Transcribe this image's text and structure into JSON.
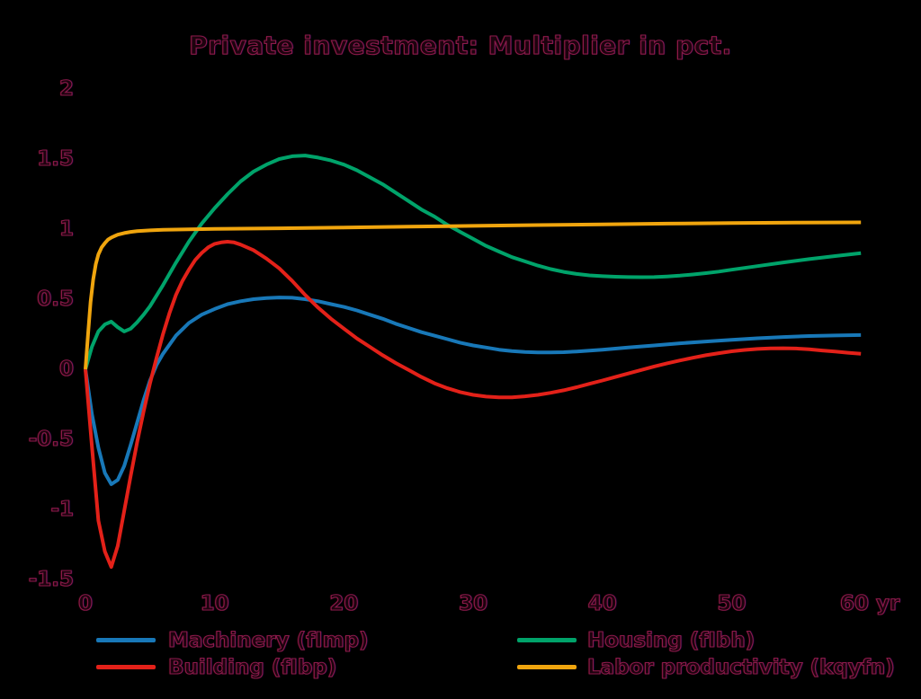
{
  "title": "Private investment: Multiplier in pct.",
  "style": {
    "background": "#000000",
    "text_color": "#8c1a4a"
  },
  "chart_data": {
    "type": "line",
    "title": "Private investment: Multiplier in pct.",
    "xlabel": "yr",
    "ylabel": "",
    "xlim": [
      0,
      60
    ],
    "ylim": [
      -1.5,
      2
    ],
    "grid": false,
    "legend_position": "bottom",
    "x_ticks": [
      {
        "value": 0,
        "label": "0"
      },
      {
        "value": 10,
        "label": "10"
      },
      {
        "value": 20,
        "label": "20"
      },
      {
        "value": 30,
        "label": "30"
      },
      {
        "value": 40,
        "label": "40"
      },
      {
        "value": 50,
        "label": "50"
      },
      {
        "value": 60,
        "label": "60 yr"
      }
    ],
    "y_ticks": [
      {
        "value": 2,
        "label": "2"
      },
      {
        "value": 1.5,
        "label": "1.5"
      },
      {
        "value": 1,
        "label": "1"
      },
      {
        "value": 0.5,
        "label": "0.5"
      },
      {
        "value": 0,
        "label": "0"
      },
      {
        "value": -0.5,
        "label": "-0.5"
      },
      {
        "value": -1,
        "label": "-1"
      },
      {
        "value": -1.5,
        "label": "-1.5"
      }
    ],
    "series": [
      {
        "key": "machinery",
        "name": "Machinery (fImp)",
        "color": "#1878b8",
        "points": [
          [
            0,
            0
          ],
          [
            0.5,
            -0.32
          ],
          [
            1,
            -0.56
          ],
          [
            1.5,
            -0.74
          ],
          [
            2,
            -0.82
          ],
          [
            2.5,
            -0.79
          ],
          [
            3,
            -0.69
          ],
          [
            3.5,
            -0.54
          ],
          [
            4,
            -0.38
          ],
          [
            4.5,
            -0.22
          ],
          [
            5,
            -0.08
          ],
          [
            5.5,
            0.03
          ],
          [
            6,
            0.11
          ],
          [
            7,
            0.24
          ],
          [
            8,
            0.33
          ],
          [
            9,
            0.39
          ],
          [
            10,
            0.43
          ],
          [
            11,
            0.465
          ],
          [
            12,
            0.485
          ],
          [
            13,
            0.5
          ],
          [
            14,
            0.508
          ],
          [
            15,
            0.512
          ],
          [
            16,
            0.51
          ],
          [
            17,
            0.5
          ],
          [
            18,
            0.485
          ],
          [
            19,
            0.465
          ],
          [
            20,
            0.445
          ],
          [
            21,
            0.42
          ],
          [
            22,
            0.39
          ],
          [
            23,
            0.36
          ],
          [
            24,
            0.325
          ],
          [
            25,
            0.295
          ],
          [
            26,
            0.265
          ],
          [
            27,
            0.24
          ],
          [
            28,
            0.215
          ],
          [
            29,
            0.19
          ],
          [
            30,
            0.17
          ],
          [
            31,
            0.155
          ],
          [
            32,
            0.14
          ],
          [
            33,
            0.13
          ],
          [
            34,
            0.124
          ],
          [
            35,
            0.12
          ],
          [
            36,
            0.12
          ],
          [
            37,
            0.122
          ],
          [
            38,
            0.127
          ],
          [
            39,
            0.133
          ],
          [
            40,
            0.14
          ],
          [
            42,
            0.155
          ],
          [
            44,
            0.17
          ],
          [
            46,
            0.185
          ],
          [
            48,
            0.198
          ],
          [
            50,
            0.21
          ],
          [
            52,
            0.221
          ],
          [
            54,
            0.23
          ],
          [
            56,
            0.237
          ],
          [
            58,
            0.241
          ],
          [
            60,
            0.244
          ]
        ]
      },
      {
        "key": "building",
        "name": "Building (fIbp)",
        "color": "#e32119",
        "points": [
          [
            0,
            0
          ],
          [
            0.5,
            -0.55
          ],
          [
            1,
            -1.08
          ],
          [
            1.5,
            -1.3
          ],
          [
            2,
            -1.41
          ],
          [
            2.5,
            -1.26
          ],
          [
            3,
            -1.01
          ],
          [
            3.5,
            -0.76
          ],
          [
            4,
            -0.52
          ],
          [
            4.5,
            -0.3
          ],
          [
            5,
            -0.1
          ],
          [
            5.5,
            0.08
          ],
          [
            6,
            0.25
          ],
          [
            6.5,
            0.4
          ],
          [
            7,
            0.53
          ],
          [
            7.5,
            0.63
          ],
          [
            8,
            0.71
          ],
          [
            8.5,
            0.78
          ],
          [
            9,
            0.83
          ],
          [
            9.5,
            0.87
          ],
          [
            10,
            0.895
          ],
          [
            10.5,
            0.905
          ],
          [
            11,
            0.91
          ],
          [
            11.5,
            0.905
          ],
          [
            12,
            0.89
          ],
          [
            13,
            0.85
          ],
          [
            14,
            0.79
          ],
          [
            15,
            0.72
          ],
          [
            16,
            0.63
          ],
          [
            17,
            0.53
          ],
          [
            18,
            0.44
          ],
          [
            19,
            0.36
          ],
          [
            20,
            0.29
          ],
          [
            21,
            0.22
          ],
          [
            22,
            0.16
          ],
          [
            23,
            0.1
          ],
          [
            24,
            0.045
          ],
          [
            25,
            -0.005
          ],
          [
            26,
            -0.055
          ],
          [
            27,
            -0.1
          ],
          [
            28,
            -0.135
          ],
          [
            29,
            -0.163
          ],
          [
            30,
            -0.183
          ],
          [
            31,
            -0.195
          ],
          [
            32,
            -0.2
          ],
          [
            33,
            -0.2
          ],
          [
            34,
            -0.193
          ],
          [
            35,
            -0.183
          ],
          [
            36,
            -0.168
          ],
          [
            37,
            -0.15
          ],
          [
            38,
            -0.128
          ],
          [
            39,
            -0.104
          ],
          [
            40,
            -0.08
          ],
          [
            41,
            -0.055
          ],
          [
            42,
            -0.03
          ],
          [
            43,
            -0.005
          ],
          [
            44,
            0.02
          ],
          [
            45,
            0.042
          ],
          [
            46,
            0.063
          ],
          [
            47,
            0.082
          ],
          [
            48,
            0.1
          ],
          [
            49,
            0.115
          ],
          [
            50,
            0.128
          ],
          [
            51,
            0.138
          ],
          [
            52,
            0.145
          ],
          [
            53,
            0.149
          ],
          [
            54,
            0.15
          ],
          [
            55,
            0.148
          ],
          [
            56,
            0.142
          ],
          [
            57,
            0.134
          ],
          [
            58,
            0.126
          ],
          [
            59,
            0.118
          ],
          [
            60,
            0.11
          ]
        ]
      },
      {
        "key": "housing",
        "name": "Housing (fIbh)",
        "color": "#00a36a",
        "points": [
          [
            0,
            0
          ],
          [
            0.5,
            0.16
          ],
          [
            1,
            0.27
          ],
          [
            1.5,
            0.32
          ],
          [
            2,
            0.34
          ],
          [
            2.5,
            0.3
          ],
          [
            3,
            0.27
          ],
          [
            3.5,
            0.29
          ],
          [
            4,
            0.335
          ],
          [
            4.5,
            0.39
          ],
          [
            5,
            0.45
          ],
          [
            6,
            0.6
          ],
          [
            7,
            0.76
          ],
          [
            8,
            0.91
          ],
          [
            9,
            1.04
          ],
          [
            10,
            1.15
          ],
          [
            11,
            1.25
          ],
          [
            12,
            1.34
          ],
          [
            13,
            1.41
          ],
          [
            14,
            1.46
          ],
          [
            15,
            1.5
          ],
          [
            16,
            1.52
          ],
          [
            17,
            1.525
          ],
          [
            18,
            1.51
          ],
          [
            19,
            1.49
          ],
          [
            20,
            1.46
          ],
          [
            21,
            1.42
          ],
          [
            22,
            1.37
          ],
          [
            23,
            1.32
          ],
          [
            24,
            1.26
          ],
          [
            25,
            1.2
          ],
          [
            26,
            1.14
          ],
          [
            27,
            1.09
          ],
          [
            28,
            1.03
          ],
          [
            29,
            0.98
          ],
          [
            30,
            0.93
          ],
          [
            31,
            0.88
          ],
          [
            32,
            0.84
          ],
          [
            33,
            0.8
          ],
          [
            34,
            0.77
          ],
          [
            35,
            0.74
          ],
          [
            36,
            0.715
          ],
          [
            37,
            0.695
          ],
          [
            38,
            0.68
          ],
          [
            39,
            0.67
          ],
          [
            40,
            0.664
          ],
          [
            41,
            0.66
          ],
          [
            42,
            0.658
          ],
          [
            43,
            0.657
          ],
          [
            44,
            0.658
          ],
          [
            45,
            0.662
          ],
          [
            46,
            0.668
          ],
          [
            47,
            0.676
          ],
          [
            48,
            0.686
          ],
          [
            49,
            0.697
          ],
          [
            50,
            0.71
          ],
          [
            52,
            0.736
          ],
          [
            54,
            0.762
          ],
          [
            56,
            0.786
          ],
          [
            58,
            0.808
          ],
          [
            60,
            0.828
          ]
        ]
      },
      {
        "key": "labor_productivity",
        "name": "Labor productivity (kqyfn)",
        "color": "#f0a50e",
        "points": [
          [
            0,
            0
          ],
          [
            0.2,
            0.25
          ],
          [
            0.4,
            0.48
          ],
          [
            0.6,
            0.64
          ],
          [
            0.8,
            0.75
          ],
          [
            1,
            0.82
          ],
          [
            1.25,
            0.87
          ],
          [
            1.5,
            0.9
          ],
          [
            1.75,
            0.925
          ],
          [
            2,
            0.94
          ],
          [
            2.5,
            0.96
          ],
          [
            3,
            0.972
          ],
          [
            3.5,
            0.98
          ],
          [
            4,
            0.985
          ],
          [
            5,
            0.991
          ],
          [
            6,
            0.995
          ],
          [
            7,
            0.997
          ],
          [
            8,
            0.999
          ],
          [
            10,
            1.001
          ],
          [
            12,
            1.003
          ],
          [
            15,
            1.006
          ],
          [
            20,
            1.011
          ],
          [
            25,
            1.017
          ],
          [
            30,
            1.023
          ],
          [
            35,
            1.029
          ],
          [
            40,
            1.034
          ],
          [
            45,
            1.039
          ],
          [
            50,
            1.043
          ],
          [
            55,
            1.046
          ],
          [
            60,
            1.048
          ]
        ]
      }
    ]
  }
}
